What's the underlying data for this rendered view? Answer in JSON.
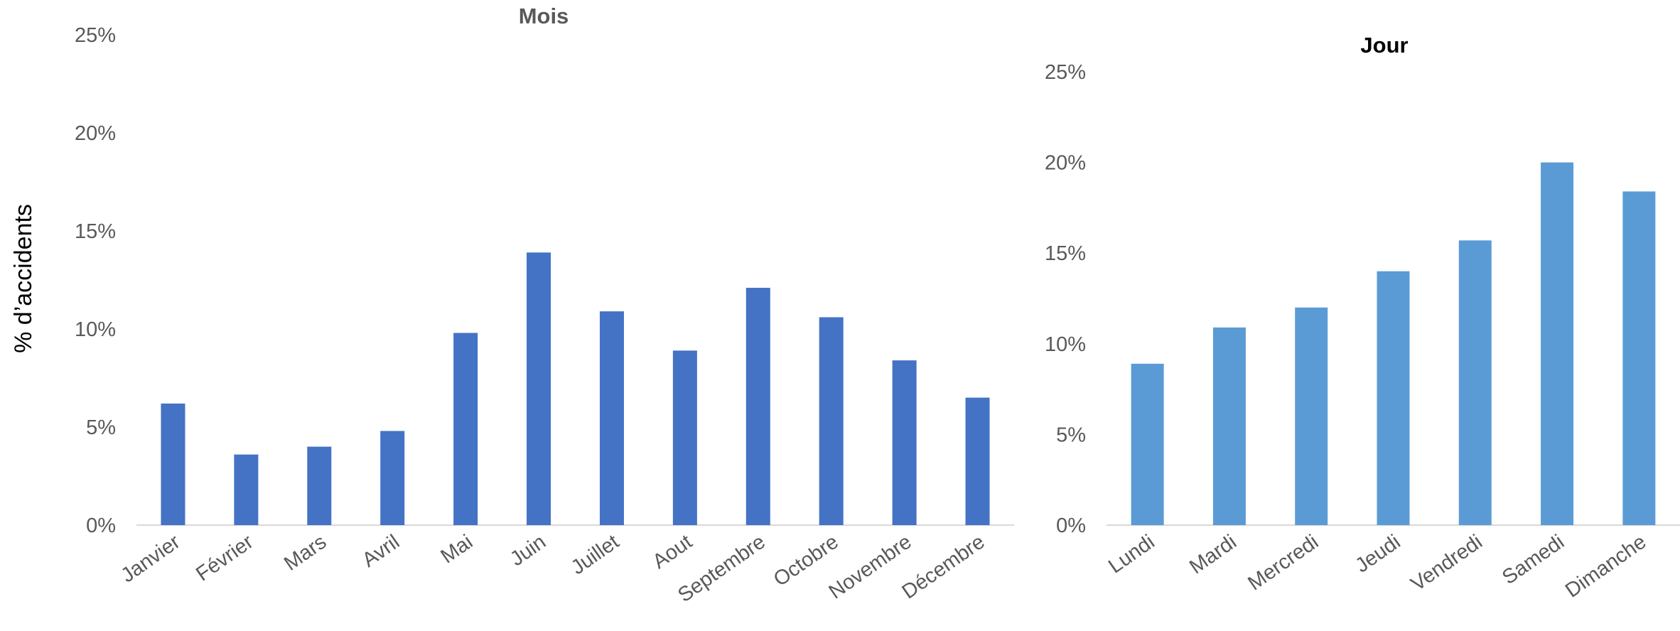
{
  "shared": {
    "ylabel": "% d’accidents"
  },
  "chart_data": [
    {
      "type": "bar",
      "title": "Mois",
      "ylabel": "% d’accidents",
      "categories": [
        "Janvier",
        "Février",
        "Mars",
        "Avril",
        "Mai",
        "Juin",
        "Juillet",
        "Aout",
        "Septembre",
        "Octobre",
        "Novembre",
        "Décembre"
      ],
      "values": [
        6.2,
        3.6,
        4.0,
        4.8,
        9.8,
        13.9,
        10.9,
        8.9,
        12.1,
        10.6,
        8.4,
        6.5
      ],
      "ylim": [
        0,
        25
      ],
      "yticks": [
        "0%",
        "5%",
        "10%",
        "15%",
        "20%",
        "25%"
      ],
      "grid": false,
      "color": "#4472C4"
    },
    {
      "type": "bar",
      "title": "Jour",
      "categories": [
        "Lundi",
        "Mardi",
        "Mercredi",
        "Jeudi",
        "Vendredi",
        "Samedi",
        "Dimanche"
      ],
      "values": [
        8.9,
        10.9,
        12.0,
        14.0,
        15.7,
        20.0,
        18.4
      ],
      "ylim": [
        0,
        25
      ],
      "yticks": [
        "0%",
        "5%",
        "10%",
        "15%",
        "20%",
        "25%"
      ],
      "grid": false,
      "color": "#5B9BD5"
    }
  ]
}
